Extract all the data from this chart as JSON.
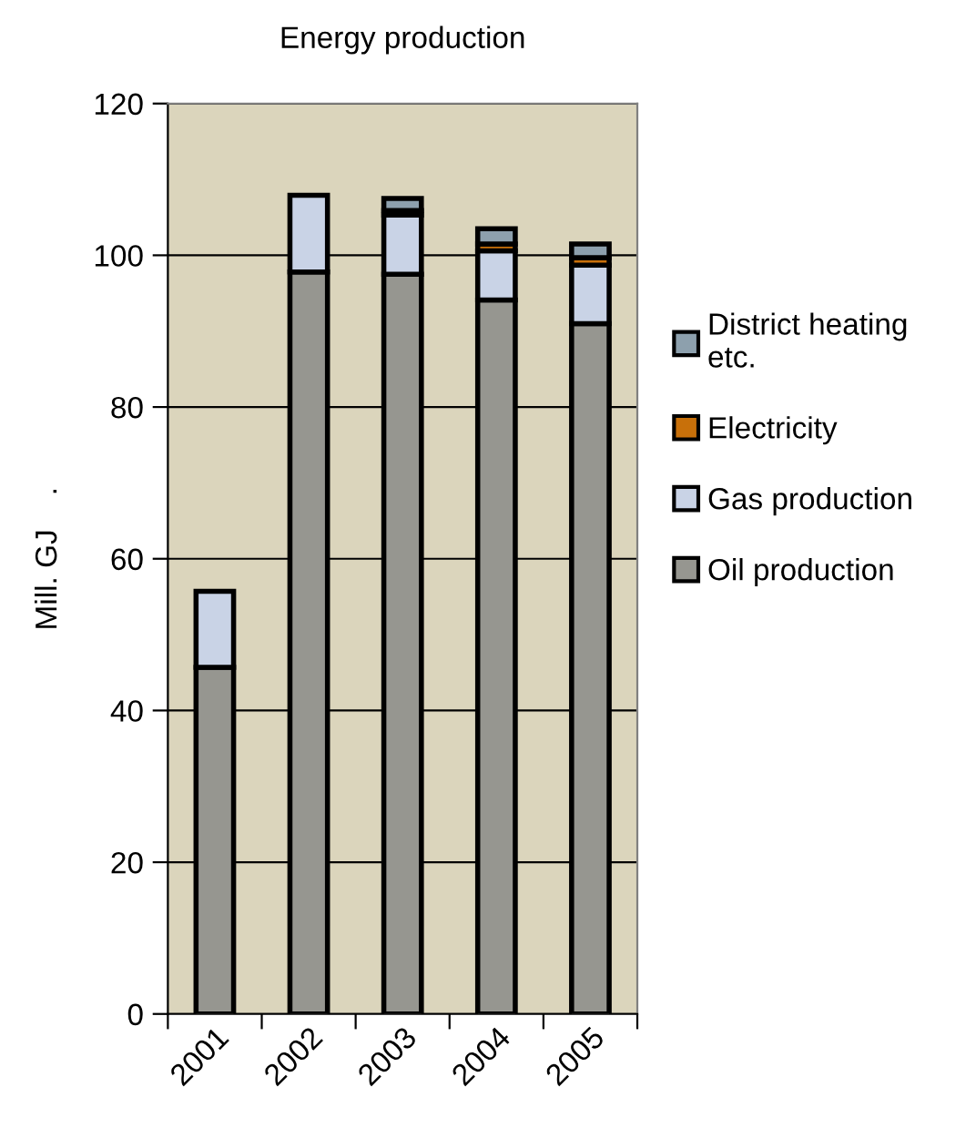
{
  "chart_data": {
    "type": "bar",
    "stacked": true,
    "title": "Energy production",
    "ylabel": "Mill. GJ    .",
    "categories": [
      "2001",
      "2002",
      "2003",
      "2004",
      "2005"
    ],
    "series": [
      {
        "name": "Oil production",
        "color": "#969690",
        "values": [
          45.7,
          97.8,
          97.5,
          94.1,
          91.0
        ]
      },
      {
        "name": "Gas production",
        "color": "#c9d3e6",
        "values": [
          10.0,
          10.1,
          7.8,
          6.5,
          7.7
        ]
      },
      {
        "name": "Electricity",
        "color": "#c8700a",
        "values": [
          null,
          null,
          0.6,
          0.9,
          1.0
        ]
      },
      {
        "name": "District heating\netc.",
        "color": "#8da0ad",
        "values": [
          null,
          null,
          1.6,
          2.0,
          1.8
        ]
      }
    ],
    "ylim": [
      0,
      120
    ],
    "yticks": [
      0,
      20,
      40,
      60,
      80,
      100,
      120
    ],
    "grid": "y",
    "legend": "right"
  }
}
